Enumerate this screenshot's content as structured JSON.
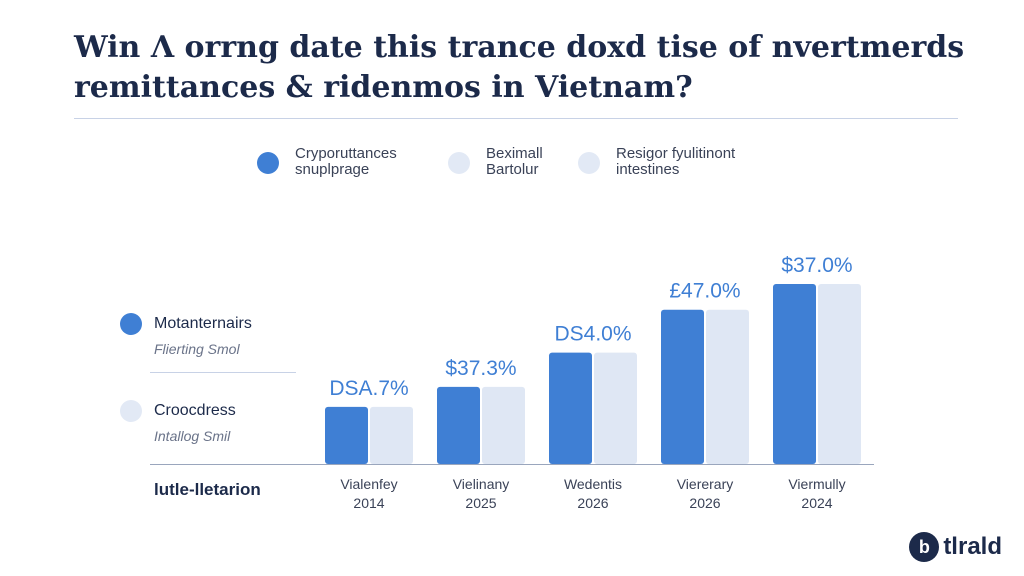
{
  "title_line1": "Win Λ orrng date this trance doxd tise of nvertmerds",
  "title_line2": "remittances & ridenmos in Vietnam?",
  "legend": [
    {
      "line1": "Cryporuttances",
      "line2": "snuplprage",
      "color": "#3f7fd4"
    },
    {
      "line1": "Beximall",
      "line2": "Bartolur",
      "color": "#e2e9f5"
    },
    {
      "line1": "Resigor fyulitinont",
      "line2": "intestines",
      "color": "#e2e9f5"
    }
  ],
  "side_legend": [
    {
      "label": "Motanternairs",
      "sub": "Flierting Smol",
      "color": "#3f7fd4"
    },
    {
      "label": "Croocdress",
      "sub": "Intallog Smil",
      "color": "#e2e9f5"
    }
  ],
  "axis_title": "lutle-lletarion",
  "brand": {
    "mark": "b",
    "name": "tlrald"
  },
  "chart_data": {
    "type": "bar",
    "categories": [
      {
        "name": "Vialenfey",
        "year": "2014"
      },
      {
        "name": "Vielinany",
        "year": "2025"
      },
      {
        "name": "Wedentis",
        "year": "2026"
      },
      {
        "name": "Viererary",
        "year": "2026"
      },
      {
        "name": "Viermully",
        "year": "2024"
      }
    ],
    "series": [
      {
        "values": [
          20,
          27,
          39,
          54,
          63
        ],
        "color": "#3f7fd4"
      },
      {
        "values": [
          20,
          27,
          39,
          54,
          63
        ],
        "color": "#dfe7f4"
      }
    ],
    "data_labels": [
      "DSA.7%",
      "$37.3%",
      "DS4.0%",
      "£47.0%",
      "$37.0%"
    ],
    "ylim": [
      0,
      70
    ],
    "grid": false,
    "colors": {
      "bar_label": "#3f7fd4",
      "tick_label": "#3a4257"
    }
  }
}
